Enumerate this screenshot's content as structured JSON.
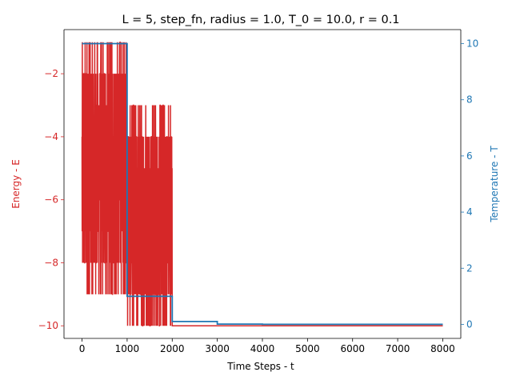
{
  "chart_data": {
    "type": "line",
    "title": "L = 5, step_fn, radius = 1.0, T_0 = 10.0, r = 0.1",
    "xlabel": "Time Steps - t",
    "xlim": [
      -400,
      8400
    ],
    "xticks": [
      0,
      1000,
      2000,
      3000,
      4000,
      5000,
      6000,
      7000,
      8000
    ],
    "grid": false,
    "legend": "none",
    "axes": {
      "left": {
        "label": "Energy - E",
        "color": "#d62728",
        "ylim": [
          -10.4,
          -0.6
        ],
        "ticks": [
          -2,
          -4,
          -6,
          -8,
          -10
        ]
      },
      "right": {
        "label": "Temperature - T",
        "color": "#1f77b4",
        "ylim": [
          -0.5,
          10.5
        ],
        "ticks": [
          0,
          2,
          4,
          6,
          8,
          10
        ]
      }
    },
    "series": [
      {
        "axis": "left",
        "color": "#d62728",
        "segments": [
          {
            "t_start": 0,
            "t_end": 1000,
            "min": -9,
            "max": -1,
            "noisy": true
          },
          {
            "t_start": 1000,
            "t_end": 2000,
            "min": -10,
            "max": -3,
            "noisy": true
          },
          {
            "t_start": 2000,
            "t_end": 8000,
            "value": -10
          }
        ]
      },
      {
        "axis": "right",
        "color": "#1f77b4",
        "x": [
          0,
          1000,
          1000,
          2000,
          2000,
          3000,
          3000,
          4000,
          4000,
          8000
        ],
        "y": [
          10,
          10,
          1.0,
          1.0,
          0.1,
          0.1,
          0.01,
          0.01,
          0.001,
          0.001
        ]
      }
    ]
  }
}
